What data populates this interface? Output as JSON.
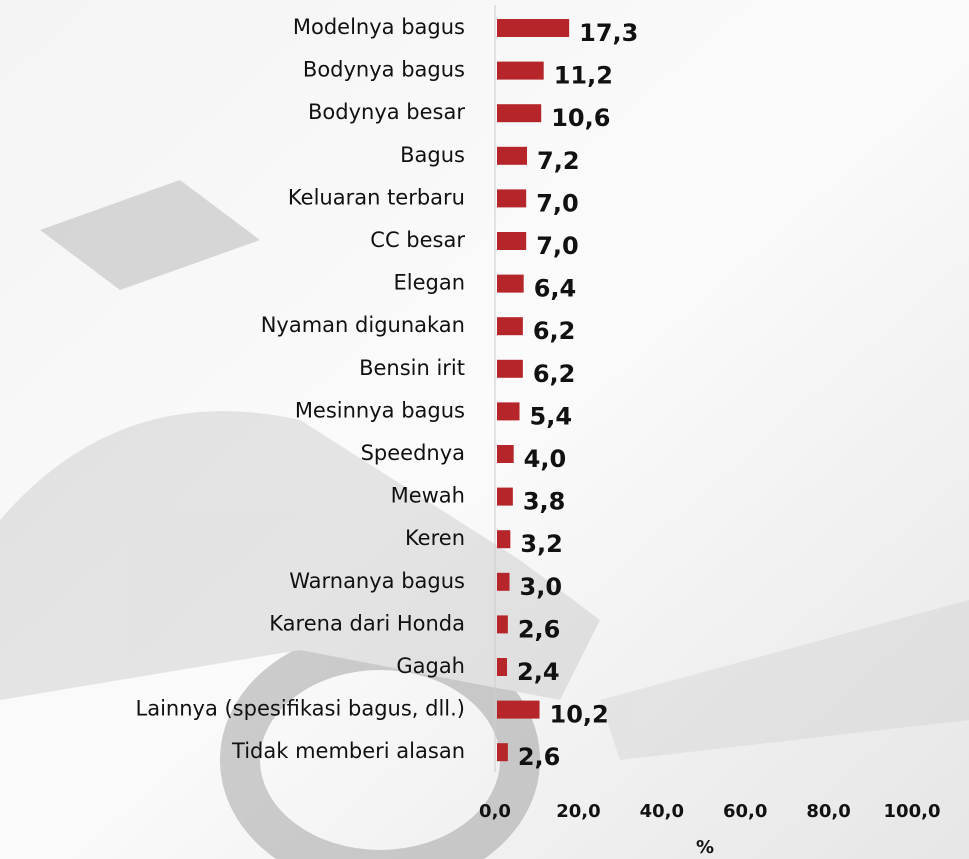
{
  "chart_data": {
    "type": "bar",
    "orientation": "horizontal",
    "categories": [
      "Modelnya bagus",
      "Bodynya bagus",
      "Bodynya besar",
      "Bagus",
      "Keluaran terbaru",
      "CC besar",
      "Elegan",
      "Nyaman digunakan",
      "Bensin irit",
      "Mesinnya bagus",
      "Speednya",
      "Mewah",
      "Keren",
      "Warnanya bagus",
      "Karena dari Honda",
      "Gagah",
      "Lainnya (spesifikasi bagus, dll.)",
      "Tidak memberi alasan"
    ],
    "values": [
      17.3,
      11.2,
      10.6,
      7.2,
      7.0,
      7.0,
      6.4,
      6.2,
      6.2,
      5.4,
      4.0,
      3.8,
      3.2,
      3.0,
      2.6,
      2.4,
      10.2,
      2.6
    ],
    "value_labels": [
      "17,3",
      "11,2",
      "10,6",
      "7,2",
      "7,0",
      "7,0",
      "6,4",
      "6,2",
      "6,2",
      "5,4",
      "4,0",
      "3,8",
      "3,2",
      "3,0",
      "2,6",
      "2,4",
      "10,2",
      "2,6"
    ],
    "color": "#b5252a",
    "xlim": [
      0,
      100
    ],
    "xticks": [
      {
        "value": 0,
        "label": "0,0"
      },
      {
        "value": 20,
        "label": "20,0"
      },
      {
        "value": 40,
        "label": "40,0"
      },
      {
        "value": 60,
        "label": "60,0"
      },
      {
        "value": 80,
        "label": "80,0"
      },
      {
        "value": 100,
        "label": "100,0"
      }
    ],
    "xlabel": "%"
  }
}
